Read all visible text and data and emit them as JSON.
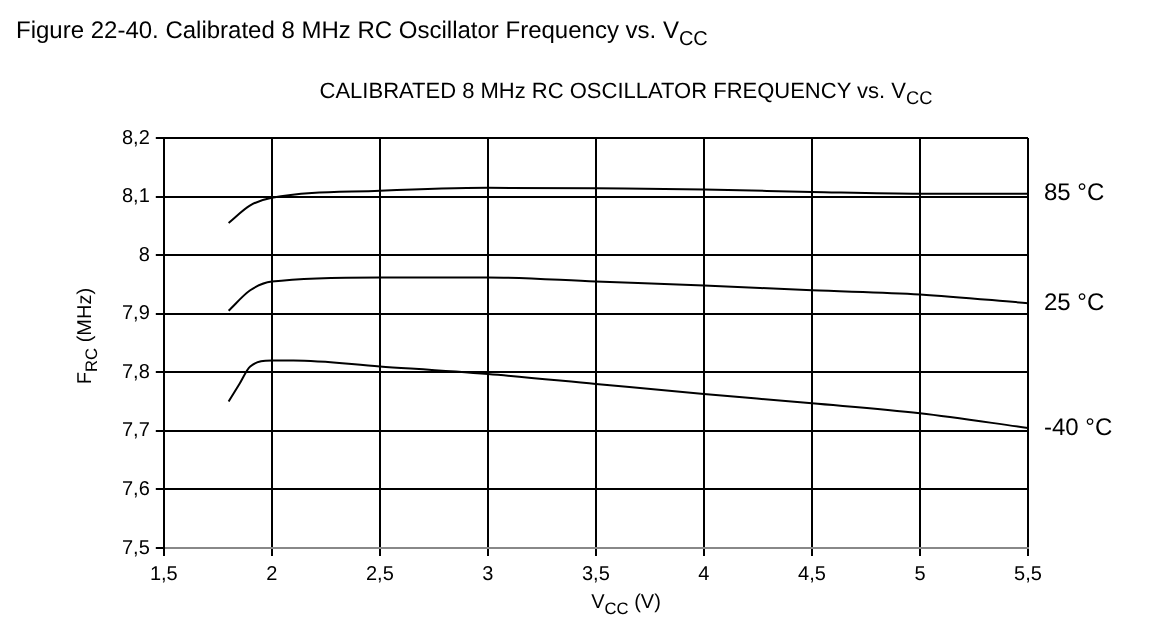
{
  "chart_data": {
    "type": "line",
    "title": "Figure 22-40. Calibrated 8 MHz RC Oscillator Frequency vs. V$_{CC}$",
    "subtitle": "CALIBRATED 8 MHz RC OSCILLATOR FREQUENCY vs. V$_{CC}$",
    "xlabel": "V$_{CC}$ (V)",
    "ylabel": "F$_{RC}$ (MHz)",
    "series": [
      {
        "name": "85 °C",
        "color": "#000000",
        "x": [
          1.8,
          1.9,
          2.0,
          2.5,
          3.0,
          3.5,
          4.0,
          4.5,
          5.0,
          5.5
        ],
        "values": [
          8.055,
          8.085,
          8.098,
          8.11,
          8.115,
          8.114,
          8.112,
          8.108,
          8.105,
          8.105
        ]
      },
      {
        "name": "25 °C",
        "color": "#000000",
        "x": [
          1.8,
          1.9,
          2.0,
          2.5,
          3.0,
          3.5,
          4.0,
          4.5,
          5.0,
          5.5
        ],
        "values": [
          7.905,
          7.94,
          7.955,
          7.962,
          7.962,
          7.955,
          7.948,
          7.94,
          7.933,
          7.918
        ]
      },
      {
        "name": "-40 °C",
        "color": "#000000",
        "x": [
          1.8,
          1.85,
          1.9,
          2.0,
          2.1,
          2.5,
          3.0,
          3.5,
          4.0,
          4.5,
          5.0,
          5.5
        ],
        "values": [
          7.75,
          7.78,
          7.81,
          7.82,
          7.82,
          7.81,
          7.797,
          7.78,
          7.763,
          7.747,
          7.73,
          7.705
        ]
      }
    ],
    "xlim": [
      1.5,
      5.5
    ],
    "xticks": [
      {
        "value": 1.5,
        "label": "1,5"
      },
      2,
      {
        "value": 2.5,
        "label": "2,5"
      },
      3,
      {
        "value": 3.5,
        "label": "3,5"
      },
      4,
      {
        "value": 4.5,
        "label": "4,5"
      },
      5,
      {
        "value": 5.5,
        "label": "5,5"
      }
    ],
    "ylim": [
      7.5,
      8.2
    ],
    "yticks": [
      {
        "value": 7.5,
        "label": "7,5"
      },
      {
        "value": 7.6,
        "label": "7,6"
      },
      {
        "value": 7.7,
        "label": "7,7"
      },
      {
        "value": 7.8,
        "label": "7,8"
      },
      {
        "value": 7.9,
        "label": "7,9"
      },
      8,
      {
        "value": 8.1,
        "label": "8,1"
      },
      {
        "value": 8.2,
        "label": "8,2"
      }
    ],
    "grid": true,
    "legend": false,
    "marker": "none",
    "line_style": "solid"
  }
}
